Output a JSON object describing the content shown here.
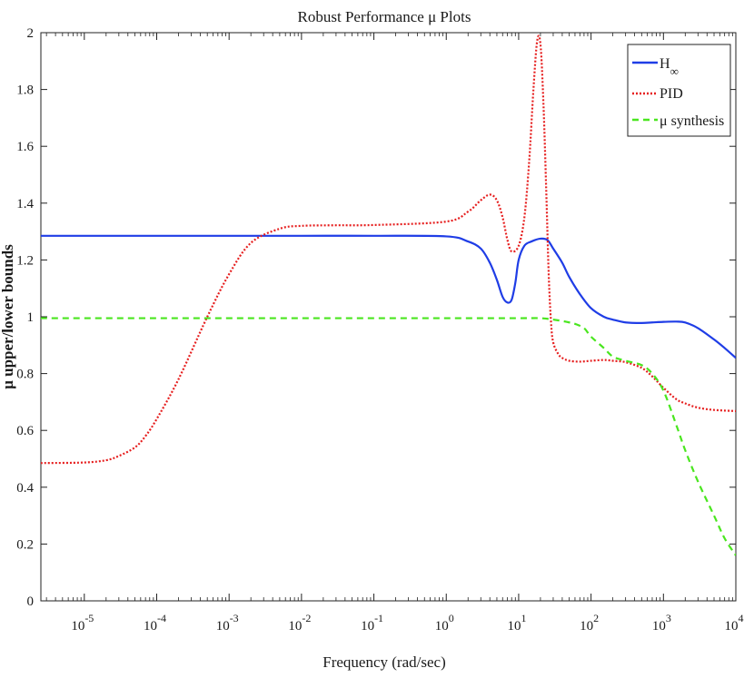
{
  "chart_data": {
    "type": "line",
    "title": "Robust Performance        μ Plots",
    "xlabel": "Frequency (rad/sec)",
    "ylabel": "μ upper/lower bounds",
    "x_scale": "log",
    "xlim_exp": [
      -5.6,
      4
    ],
    "ylim": [
      0,
      2
    ],
    "grid": false,
    "legend_position": "top-right",
    "x_ticks": [
      {
        "base": "10",
        "exp": "-5"
      },
      {
        "base": "10",
        "exp": "-4"
      },
      {
        "base": "10",
        "exp": "-3"
      },
      {
        "base": "10",
        "exp": "-2"
      },
      {
        "base": "10",
        "exp": "-1"
      },
      {
        "base": "10",
        "exp": "0"
      },
      {
        "base": "10",
        "exp": "1"
      },
      {
        "base": "10",
        "exp": "2"
      },
      {
        "base": "10",
        "exp": "3"
      },
      {
        "base": "10",
        "exp": "4"
      }
    ],
    "y_ticks": [
      "0",
      "0.2",
      "0.4",
      "0.6",
      "0.8",
      "1",
      "1.2",
      "1.4",
      "1.6",
      "1.8",
      "2"
    ],
    "series": [
      {
        "name": "H",
        "name_sub": "∞",
        "color": "#1f3de6",
        "dash": "solid",
        "x": [
          2.5e-06,
          1e-05,
          0.0001,
          0.001,
          0.01,
          0.1,
          1,
          2,
          3,
          4,
          5,
          6,
          7,
          8,
          9,
          10,
          12,
          15,
          20,
          25,
          30,
          40,
          50,
          70,
          100,
          150,
          200,
          300,
          500,
          700,
          1000,
          1500,
          2000,
          3000,
          5000,
          7000,
          10000
        ],
        "values": [
          1.285,
          1.285,
          1.285,
          1.285,
          1.285,
          1.285,
          1.283,
          1.265,
          1.24,
          1.19,
          1.13,
          1.07,
          1.05,
          1.06,
          1.12,
          1.2,
          1.25,
          1.265,
          1.275,
          1.27,
          1.24,
          1.19,
          1.14,
          1.08,
          1.03,
          1.0,
          0.99,
          0.98,
          0.978,
          0.98,
          0.982,
          0.983,
          0.98,
          0.96,
          0.92,
          0.89,
          0.855
        ]
      },
      {
        "name": "PID",
        "color": "#e61f1f",
        "dash": "dotted",
        "x": [
          2.5e-06,
          1e-05,
          2e-05,
          3e-05,
          5e-05,
          7e-05,
          0.0001,
          0.0002,
          0.0005,
          0.001,
          0.002,
          0.005,
          0.01,
          0.03,
          0.1,
          1,
          2,
          3,
          4,
          5,
          6,
          7,
          8,
          10,
          12,
          14,
          16,
          18,
          20,
          22,
          24,
          26,
          28,
          30,
          35,
          40,
          50,
          70,
          100,
          150,
          200,
          300,
          500,
          700,
          1000,
          1500,
          2000,
          3000,
          5000,
          10000
        ],
        "values": [
          0.485,
          0.487,
          0.495,
          0.51,
          0.54,
          0.58,
          0.64,
          0.78,
          1.0,
          1.15,
          1.26,
          1.31,
          1.32,
          1.322,
          1.323,
          1.335,
          1.37,
          1.41,
          1.43,
          1.41,
          1.35,
          1.27,
          1.23,
          1.25,
          1.35,
          1.55,
          1.8,
          1.97,
          1.96,
          1.75,
          1.45,
          1.15,
          0.98,
          0.91,
          0.87,
          0.855,
          0.845,
          0.842,
          0.845,
          0.848,
          0.845,
          0.84,
          0.82,
          0.79,
          0.75,
          0.71,
          0.695,
          0.68,
          0.672,
          0.668
        ]
      },
      {
        "name": "μ synthesis",
        "color": "#4ae61f",
        "dash": "dashed",
        "x": [
          2.5e-06,
          1e-05,
          0.0001,
          0.001,
          0.01,
          0.1,
          1,
          10,
          20,
          30,
          40,
          50,
          60,
          80,
          100,
          150,
          200,
          300,
          500,
          700,
          1000,
          1500,
          2000,
          3000,
          5000,
          7000,
          10000
        ],
        "values": [
          0.995,
          0.995,
          0.995,
          0.995,
          0.995,
          0.995,
          0.995,
          0.995,
          0.995,
          0.99,
          0.985,
          0.98,
          0.975,
          0.96,
          0.93,
          0.89,
          0.86,
          0.845,
          0.83,
          0.8,
          0.74,
          0.62,
          0.53,
          0.42,
          0.3,
          0.22,
          0.16
        ]
      }
    ]
  }
}
